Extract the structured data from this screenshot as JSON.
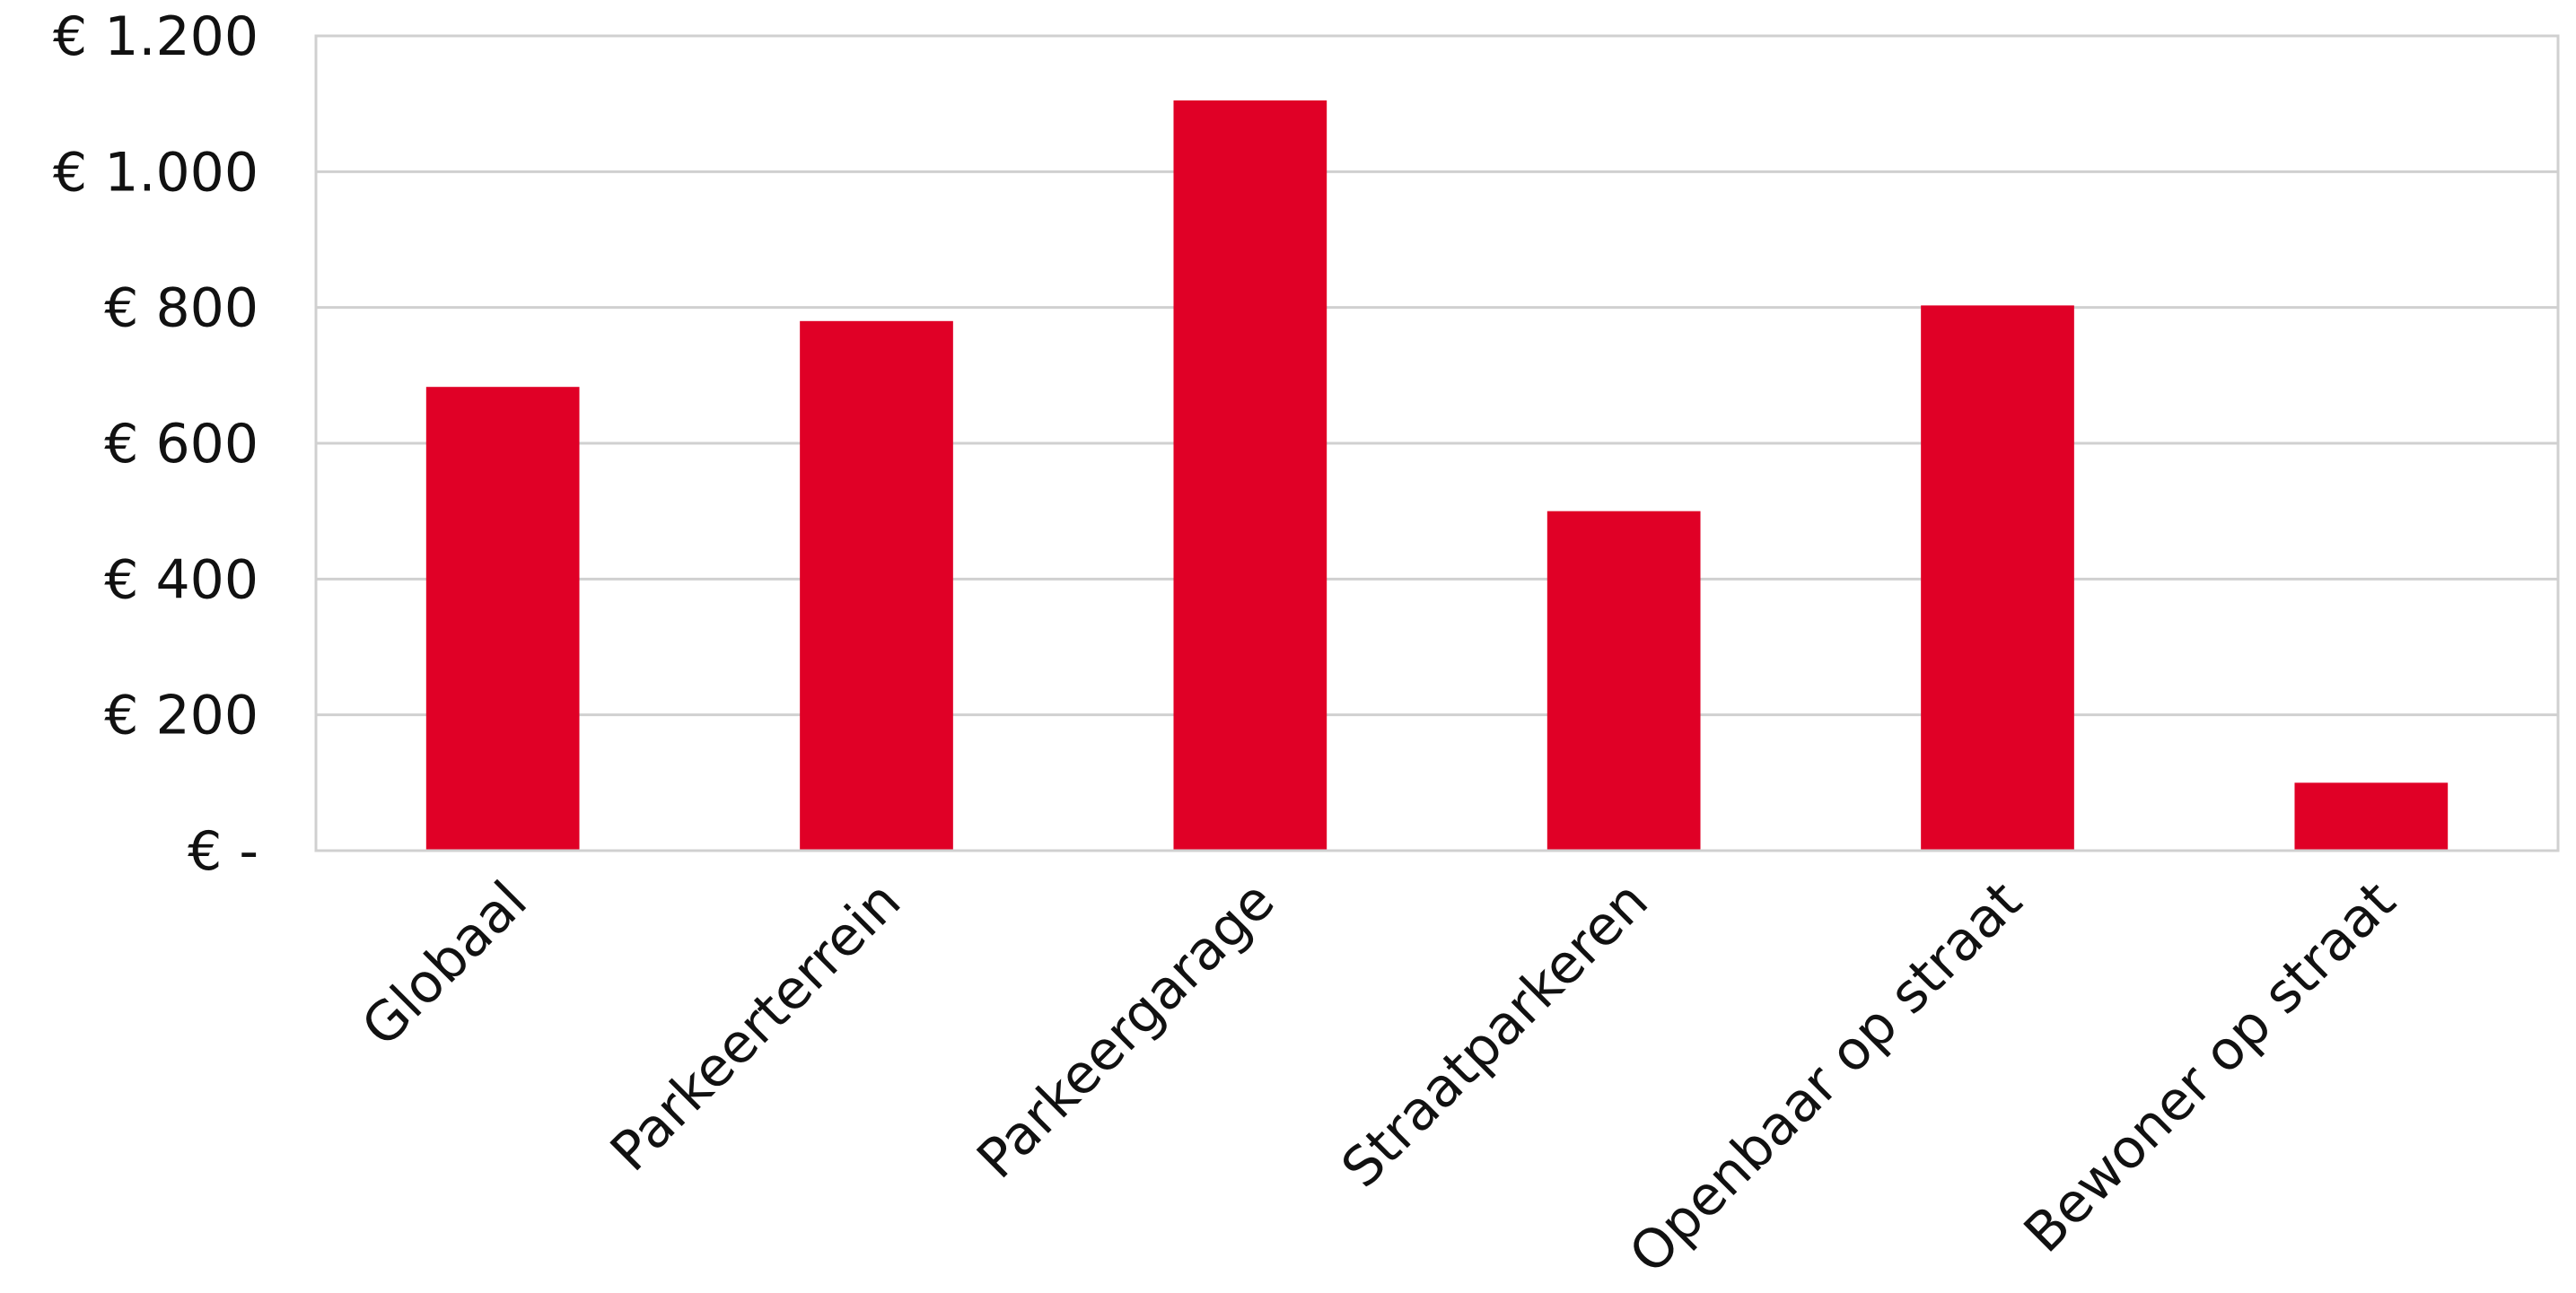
{
  "chart_data": {
    "type": "bar",
    "title": "",
    "xlabel": "",
    "ylabel": "",
    "categories": [
      "Globaal",
      "Parkeerterrein",
      "Parkeergarage",
      "Straatparkeren",
      "Openbaar op straat",
      "Bewoner op straat"
    ],
    "values": [
      683,
      780,
      1105,
      500,
      803,
      100
    ],
    "ylim": [
      0,
      1200
    ],
    "yticks": [
      0,
      200,
      400,
      600,
      800,
      1000,
      1200
    ],
    "ytick_labels": [
      "€  -",
      "€ 200",
      "€ 400",
      "€ 600",
      "€ 800",
      "€ 1.000",
      "€ 1.200"
    ],
    "grid": true,
    "legend": "none",
    "bar_color": "#e00026",
    "grid_color": "#d0d0d0"
  }
}
